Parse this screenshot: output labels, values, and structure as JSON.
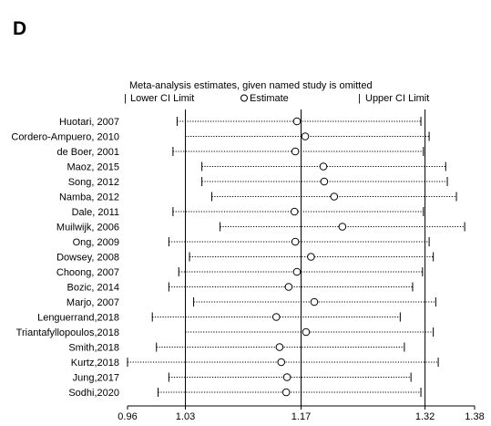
{
  "panel_label": "D",
  "chart_data": {
    "type": "scatter",
    "title": "Meta-analysis estimates, given named study is omitted",
    "legend": {
      "lower": "Lower CI Limit",
      "estimate": "Estimate",
      "upper": "Upper CI Limit"
    },
    "x_ticks": [
      "0.96",
      "1.03",
      "1.17",
      "1.32",
      "1.38"
    ],
    "x_tick_values": [
      0.96,
      1.03,
      1.17,
      1.32,
      1.38
    ],
    "xlim": [
      0.96,
      1.38
    ],
    "reference_lines": [
      1.03,
      1.17,
      1.32
    ],
    "studies": [
      {
        "name": "Huotari, 2007",
        "lower": 1.02,
        "estimate": 1.165,
        "upper": 1.315
      },
      {
        "name": "Cordero-Ampuero, 2010",
        "lower": 1.03,
        "estimate": 1.175,
        "upper": 1.325
      },
      {
        "name": "de Boer, 2001",
        "lower": 1.015,
        "estimate": 1.163,
        "upper": 1.318
      },
      {
        "name": "Maoz, 2015",
        "lower": 1.05,
        "estimate": 1.197,
        "upper": 1.345
      },
      {
        "name": "Song, 2012",
        "lower": 1.05,
        "estimate": 1.198,
        "upper": 1.347
      },
      {
        "name": "Namba, 2012",
        "lower": 1.062,
        "estimate": 1.21,
        "upper": 1.358
      },
      {
        "name": "Dale, 2011",
        "lower": 1.015,
        "estimate": 1.162,
        "upper": 1.318
      },
      {
        "name": "Muilwijk, 2006",
        "lower": 1.072,
        "estimate": 1.22,
        "upper": 1.368
      },
      {
        "name": "Ong, 2009",
        "lower": 1.01,
        "estimate": 1.163,
        "upper": 1.325
      },
      {
        "name": "Dowsey, 2008",
        "lower": 1.035,
        "estimate": 1.182,
        "upper": 1.33
      },
      {
        "name": "Choong, 2007",
        "lower": 1.022,
        "estimate": 1.165,
        "upper": 1.317
      },
      {
        "name": "Bozic, 2014",
        "lower": 1.01,
        "estimate": 1.155,
        "upper": 1.305
      },
      {
        "name": "Marjo, 2007",
        "lower": 1.04,
        "estimate": 1.186,
        "upper": 1.333
      },
      {
        "name": "Lenguerrand,2018",
        "lower": 0.99,
        "estimate": 1.14,
        "upper": 1.29
      },
      {
        "name": "Triantafyllopoulos,2018",
        "lower": 1.03,
        "estimate": 1.176,
        "upper": 1.33
      },
      {
        "name": "Smith,2018",
        "lower": 0.995,
        "estimate": 1.144,
        "upper": 1.295
      },
      {
        "name": "Kurtz,2018",
        "lower": 0.96,
        "estimate": 1.146,
        "upper": 1.336
      },
      {
        "name": "Jung,2017",
        "lower": 1.01,
        "estimate": 1.153,
        "upper": 1.303
      },
      {
        "name": "Sodhi,2020",
        "lower": 0.997,
        "estimate": 1.152,
        "upper": 1.315
      }
    ]
  },
  "colors": {
    "ink": "#000000",
    "background": "#ffffff"
  }
}
